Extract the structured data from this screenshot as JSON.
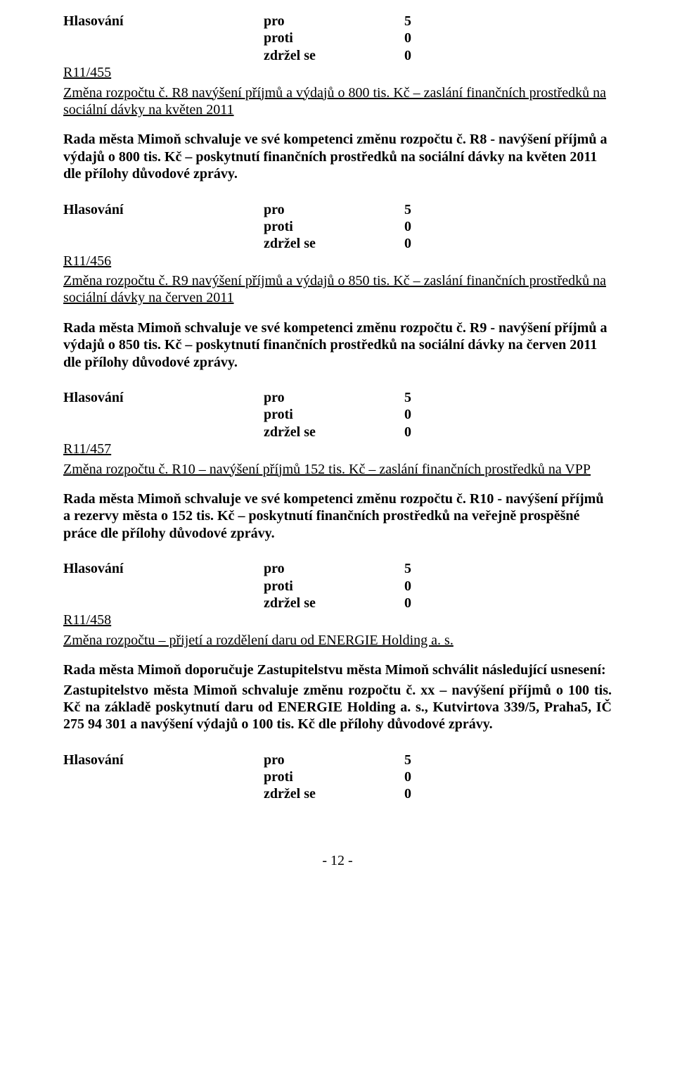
{
  "vote_label": "Hlasování",
  "vote_words": {
    "pro": "pro",
    "proti": "proti",
    "zdrzel": "zdržel se"
  },
  "vote_nums": {
    "pro": "5",
    "proti": "0",
    "zdrzel": "0"
  },
  "s1": {
    "ref": "R11/455",
    "change_line": "Změna  rozpočtu č. R8 navýšení příjmů a výdajů o 800 tis. Kč – zaslání finančních prostředků na sociální dávky na květen 2011",
    "resolution": "Rada města Mimoň schvaluje ve své kompetenci změnu rozpočtu č. R8 - navýšení příjmů a výdajů o 800 tis. Kč – poskytnutí finančních prostředků na sociální dávky na květen 2011 dle přílohy důvodové zprávy."
  },
  "s2": {
    "ref": "R11/456",
    "change_line": "Změna  rozpočtu č. R9 navýšení příjmů a výdajů o 850 tis. Kč – zaslání finančních prostředků na sociální dávky na červen 2011",
    "resolution": "Rada města Mimoň schvaluje ve své kompetenci změnu rozpočtu č. R9 - navýšení příjmů a výdajů o 850 tis. Kč – poskytnutí finančních prostředků na sociální dávky na červen 2011 dle přílohy důvodové zprávy."
  },
  "s3": {
    "ref": "R11/457",
    "change_line": "Změna  rozpočtu č. R10 – navýšení příjmů 152 tis. Kč – zaslání finančních prostředků na VPP",
    "resolution": "Rada města Mimoň schvaluje ve své kompetenci změnu rozpočtu č. R10 - navýšení příjmů a rezervy města o  152 tis. Kč – poskytnutí finančních prostředků na veřejně prospěšné práce dle přílohy důvodové zprávy."
  },
  "s4": {
    "ref": "R11/458",
    "change_line": "Změna rozpočtu – přijetí a rozdělení daru od ENERGIE Holding a. s.",
    "res_intro": "Rada města Mimoň doporučuje Zastupitelstvu města Mimoň schválit následující usnesení:",
    "res_body": "Zastupitelstvo města Mimoň schvaluje změnu rozpočtu č. xx – navýšení příjmů o 100 tis. Kč na základě poskytnutí daru od ENERGIE Holding a. s., Kutvirtova 339/5, Praha5, IČ 275 94 301 a navýšení výdajů o 100 tis. Kč dle přílohy důvodové zprávy."
  },
  "page_number": "- 12 -"
}
